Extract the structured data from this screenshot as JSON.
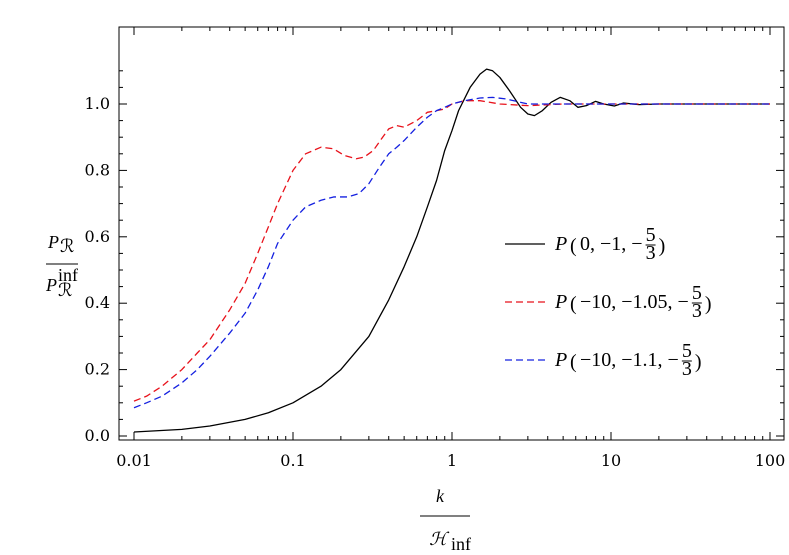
{
  "chart_data": {
    "type": "line",
    "x_scale": "log",
    "xlim": [
      0.01,
      100
    ],
    "ylim": [
      0.0,
      1.1
    ],
    "grid": false,
    "legend_placement": "center-right",
    "xlabel": {
      "numerator": "k",
      "denominator": "ℋ",
      "denominator_sub": "inf"
    },
    "ylabel": {
      "numerator": "P",
      "numerator_sub": "ℛ",
      "denominator": "P",
      "denominator_sub": "ℛ",
      "denominator_sup": "inf"
    },
    "x_ticks": [
      {
        "value": 0.01,
        "label": "0.01"
      },
      {
        "value": 0.1,
        "label": "0.1"
      },
      {
        "value": 1,
        "label": "1"
      },
      {
        "value": 10,
        "label": "10"
      },
      {
        "value": 100,
        "label": "100"
      }
    ],
    "y_ticks": [
      {
        "value": 0.0,
        "label": "0.0"
      },
      {
        "value": 0.2,
        "label": "0.2"
      },
      {
        "value": 0.4,
        "label": "0.4"
      },
      {
        "value": 0.6,
        "label": "0.6"
      },
      {
        "value": 0.8,
        "label": "0.8"
      },
      {
        "value": 1.0,
        "label": "1.0"
      }
    ],
    "series": [
      {
        "name": "P(0, −1, −5/3)",
        "legend_args": "0, −1, −",
        "color": "#000000",
        "dash": "solid",
        "x": [
          0.01,
          0.02,
          0.03,
          0.05,
          0.07,
          0.1,
          0.15,
          0.2,
          0.3,
          0.4,
          0.5,
          0.6,
          0.7,
          0.8,
          0.9,
          1.0,
          1.1,
          1.3,
          1.5,
          1.65,
          1.8,
          2.0,
          2.3,
          2.7,
          3.0,
          3.3,
          3.7,
          4.2,
          4.8,
          5.5,
          6.2,
          7.0,
          8.0,
          9.0,
          10.5,
          12,
          15,
          20,
          30,
          50,
          70,
          100
        ],
        "y": [
          0.012,
          0.02,
          0.03,
          0.05,
          0.07,
          0.1,
          0.15,
          0.2,
          0.3,
          0.41,
          0.51,
          0.6,
          0.69,
          0.77,
          0.86,
          0.92,
          0.98,
          1.05,
          1.09,
          1.105,
          1.1,
          1.08,
          1.04,
          0.99,
          0.97,
          0.965,
          0.98,
          1.005,
          1.02,
          1.01,
          0.99,
          0.995,
          1.008,
          1.0,
          0.994,
          1.003,
          0.998,
          1.0,
          1.0,
          1.0,
          1.0,
          1.0
        ]
      },
      {
        "name": "P(−10, −1.05, −5/3)",
        "legend_args": "−10, −1.05, −",
        "color": "#e8121b",
        "dash": "dashed",
        "x": [
          0.01,
          0.012,
          0.015,
          0.02,
          0.025,
          0.03,
          0.04,
          0.05,
          0.06,
          0.07,
          0.08,
          0.1,
          0.12,
          0.15,
          0.18,
          0.21,
          0.25,
          0.28,
          0.32,
          0.36,
          0.4,
          0.45,
          0.5,
          0.6,
          0.7,
          0.8,
          0.9,
          1.0,
          1.2,
          1.5,
          2.0,
          3.0,
          5.0,
          10,
          30,
          100
        ],
        "y": [
          0.105,
          0.12,
          0.15,
          0.2,
          0.25,
          0.29,
          0.38,
          0.46,
          0.55,
          0.63,
          0.7,
          0.8,
          0.85,
          0.87,
          0.865,
          0.845,
          0.835,
          0.84,
          0.86,
          0.895,
          0.925,
          0.935,
          0.93,
          0.95,
          0.975,
          0.98,
          0.985,
          1.0,
          1.01,
          1.01,
          1.0,
          0.995,
          1.0,
          1.0,
          1.0,
          1.0
        ]
      },
      {
        "name": "P(−10, −1.1, −5/3)",
        "legend_args": "−10, −1.1, −",
        "color": "#1420e0",
        "dash": "dashed",
        "x": [
          0.01,
          0.012,
          0.015,
          0.02,
          0.025,
          0.03,
          0.04,
          0.05,
          0.06,
          0.07,
          0.08,
          0.1,
          0.12,
          0.15,
          0.18,
          0.22,
          0.26,
          0.3,
          0.35,
          0.4,
          0.45,
          0.5,
          0.6,
          0.7,
          0.8,
          0.9,
          1.0,
          1.2,
          1.5,
          1.8,
          2.2,
          3.0,
          5.0,
          10,
          30,
          100
        ],
        "y": [
          0.085,
          0.1,
          0.12,
          0.16,
          0.2,
          0.24,
          0.31,
          0.37,
          0.44,
          0.51,
          0.58,
          0.65,
          0.69,
          0.71,
          0.72,
          0.72,
          0.73,
          0.76,
          0.81,
          0.85,
          0.87,
          0.89,
          0.93,
          0.96,
          0.98,
          0.99,
          1.0,
          1.01,
          1.018,
          1.02,
          1.015,
          1.0,
          1.0,
          1.0,
          1.0,
          1.0
        ]
      }
    ],
    "legend_fraction": {
      "numerator": "5",
      "denominator": "3"
    }
  }
}
